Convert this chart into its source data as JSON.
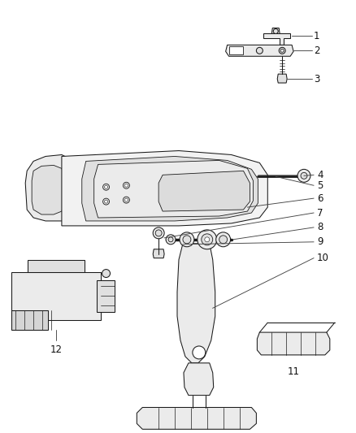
{
  "bg_color": "#ffffff",
  "line_color": "#1a1a1a",
  "fill_color": "#f5f5f5",
  "fill_dark": "#e0e0e0",
  "fill_mid": "#ebebeb",
  "callout_color": "#444444",
  "label_color": "#111111",
  "lw": 0.75,
  "lw_thick": 1.0,
  "fs": 8.5
}
